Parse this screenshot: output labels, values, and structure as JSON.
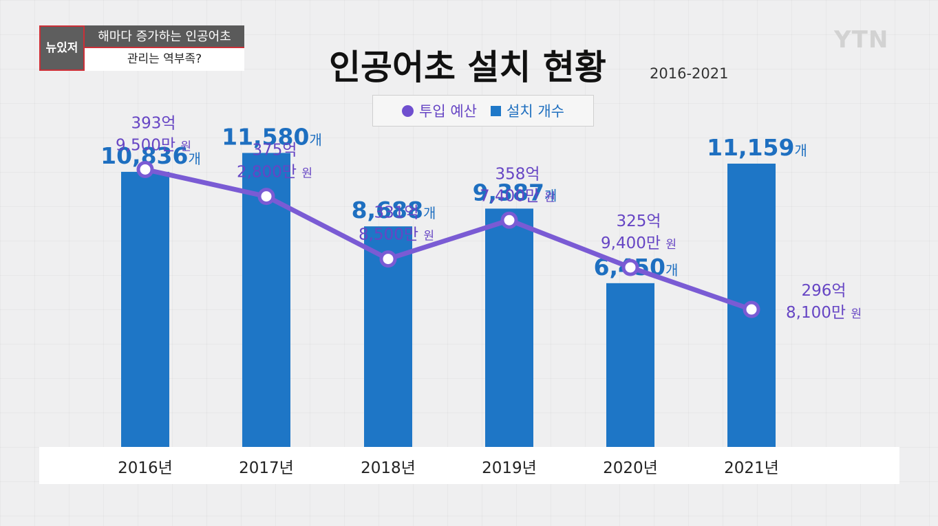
{
  "overlay": {
    "logo_text": "뉴있저",
    "caption_line1": "해마다 증가하는 인공어초",
    "caption_line2": "관리는 역부족?",
    "broadcaster": "YTN"
  },
  "colors": {
    "bar": "#1e76c6",
    "line": "#7a5bd4",
    "line_label": "#6645c4",
    "accent_red": "#cc2f37"
  },
  "chart_data": {
    "type": "bar",
    "title": "인공어초 설치 현황",
    "subtitle": "2016-2021",
    "categories": [
      "2016년",
      "2017년",
      "2018년",
      "2019년",
      "2020년",
      "2021년"
    ],
    "legend": [
      "투입 예산",
      "설치 개수"
    ],
    "legend_placement": "top-center",
    "series": [
      {
        "name": "설치 개수",
        "type": "bar",
        "values": [
          10836,
          11580,
          8688,
          9387,
          6450,
          11159
        ],
        "labels": [
          "10,836",
          "11,580",
          "8,688",
          "9,387",
          "6,450",
          "11,159"
        ],
        "unit": "개",
        "ylim": [
          0,
          13000
        ]
      },
      {
        "name": "투입 예산",
        "type": "line",
        "values": [
          39395000000,
          37528000000,
          33185000000,
          35874000000,
          32594000000,
          29681000000
        ],
        "labels_line1": [
          "393억",
          "375억",
          "331억",
          "358억",
          "325억",
          "296억"
        ],
        "labels_line2": [
          "9,500만",
          "2,800만",
          "8,500만",
          "7,400만",
          "9,400만",
          "8,100만"
        ],
        "unit": "원",
        "ylim": [
          23000000000,
          44000000000
        ]
      }
    ],
    "grid": false
  }
}
